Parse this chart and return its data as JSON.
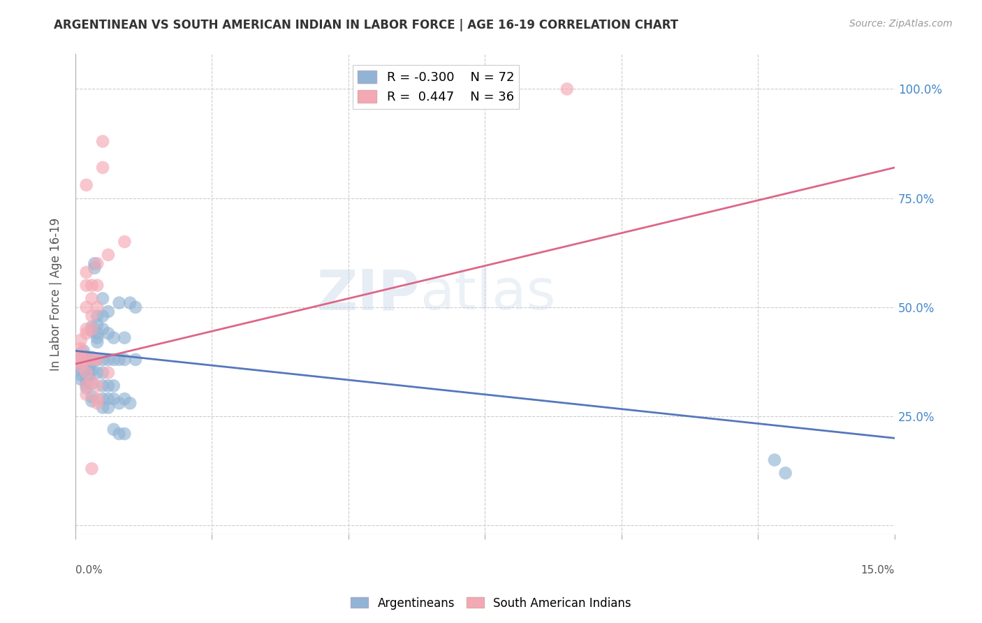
{
  "title": "ARGENTINEAN VS SOUTH AMERICAN INDIAN IN LABOR FORCE | AGE 16-19 CORRELATION CHART",
  "source": "Source: ZipAtlas.com",
  "ylabel": "In Labor Force | Age 16-19",
  "ytick_labels": [
    "",
    "25.0%",
    "50.0%",
    "75.0%",
    "100.0%"
  ],
  "ytick_positions": [
    0.0,
    0.25,
    0.5,
    0.75,
    1.0
  ],
  "xlim": [
    0.0,
    0.15
  ],
  "ylim": [
    -0.02,
    1.08
  ],
  "watermark": "ZIPatlas",
  "legend_blue_r": "-0.300",
  "legend_blue_n": "72",
  "legend_pink_r": "0.447",
  "legend_pink_n": "36",
  "blue_color": "#92B4D4",
  "pink_color": "#F4A8B4",
  "blue_scatter_alpha": 0.65,
  "pink_scatter_alpha": 0.65,
  "blue_line_color": "#5577BB",
  "pink_line_color": "#DD6688",
  "blue_scatter": [
    [
      0.001,
      0.385
    ],
    [
      0.001,
      0.365
    ],
    [
      0.001,
      0.355
    ],
    [
      0.001,
      0.345
    ],
    [
      0.001,
      0.335
    ],
    [
      0.0015,
      0.4
    ],
    [
      0.0015,
      0.39
    ],
    [
      0.0015,
      0.375
    ],
    [
      0.0015,
      0.365
    ],
    [
      0.0015,
      0.355
    ],
    [
      0.002,
      0.385
    ],
    [
      0.002,
      0.37
    ],
    [
      0.002,
      0.355
    ],
    [
      0.002,
      0.345
    ],
    [
      0.002,
      0.335
    ],
    [
      0.002,
      0.325
    ],
    [
      0.002,
      0.315
    ],
    [
      0.0025,
      0.38
    ],
    [
      0.0025,
      0.37
    ],
    [
      0.0025,
      0.36
    ],
    [
      0.0025,
      0.35
    ],
    [
      0.0025,
      0.34
    ],
    [
      0.003,
      0.455
    ],
    [
      0.003,
      0.445
    ],
    [
      0.003,
      0.385
    ],
    [
      0.003,
      0.375
    ],
    [
      0.003,
      0.355
    ],
    [
      0.003,
      0.325
    ],
    [
      0.003,
      0.295
    ],
    [
      0.003,
      0.285
    ],
    [
      0.0035,
      0.6
    ],
    [
      0.0035,
      0.59
    ],
    [
      0.004,
      0.48
    ],
    [
      0.004,
      0.46
    ],
    [
      0.004,
      0.44
    ],
    [
      0.004,
      0.43
    ],
    [
      0.004,
      0.42
    ],
    [
      0.004,
      0.38
    ],
    [
      0.004,
      0.35
    ],
    [
      0.005,
      0.52
    ],
    [
      0.005,
      0.48
    ],
    [
      0.005,
      0.45
    ],
    [
      0.005,
      0.38
    ],
    [
      0.005,
      0.35
    ],
    [
      0.005,
      0.32
    ],
    [
      0.005,
      0.29
    ],
    [
      0.005,
      0.27
    ],
    [
      0.006,
      0.49
    ],
    [
      0.006,
      0.44
    ],
    [
      0.006,
      0.38
    ],
    [
      0.006,
      0.32
    ],
    [
      0.006,
      0.29
    ],
    [
      0.006,
      0.27
    ],
    [
      0.007,
      0.43
    ],
    [
      0.007,
      0.38
    ],
    [
      0.007,
      0.32
    ],
    [
      0.007,
      0.29
    ],
    [
      0.007,
      0.22
    ],
    [
      0.008,
      0.51
    ],
    [
      0.008,
      0.38
    ],
    [
      0.008,
      0.28
    ],
    [
      0.008,
      0.21
    ],
    [
      0.009,
      0.43
    ],
    [
      0.009,
      0.38
    ],
    [
      0.009,
      0.29
    ],
    [
      0.009,
      0.21
    ],
    [
      0.01,
      0.51
    ],
    [
      0.01,
      0.28
    ],
    [
      0.011,
      0.5
    ],
    [
      0.011,
      0.38
    ],
    [
      0.13,
      0.12
    ],
    [
      0.128,
      0.15
    ]
  ],
  "pink_scatter": [
    [
      0.001,
      0.425
    ],
    [
      0.001,
      0.405
    ],
    [
      0.001,
      0.395
    ],
    [
      0.001,
      0.385
    ],
    [
      0.001,
      0.375
    ],
    [
      0.001,
      0.365
    ],
    [
      0.002,
      0.78
    ],
    [
      0.002,
      0.58
    ],
    [
      0.002,
      0.55
    ],
    [
      0.002,
      0.5
    ],
    [
      0.002,
      0.45
    ],
    [
      0.002,
      0.44
    ],
    [
      0.002,
      0.38
    ],
    [
      0.002,
      0.35
    ],
    [
      0.002,
      0.32
    ],
    [
      0.002,
      0.3
    ],
    [
      0.003,
      0.55
    ],
    [
      0.003,
      0.52
    ],
    [
      0.003,
      0.48
    ],
    [
      0.003,
      0.45
    ],
    [
      0.003,
      0.38
    ],
    [
      0.003,
      0.33
    ],
    [
      0.003,
      0.13
    ],
    [
      0.004,
      0.6
    ],
    [
      0.004,
      0.55
    ],
    [
      0.004,
      0.5
    ],
    [
      0.004,
      0.38
    ],
    [
      0.004,
      0.32
    ],
    [
      0.004,
      0.29
    ],
    [
      0.004,
      0.28
    ],
    [
      0.005,
      0.88
    ],
    [
      0.005,
      0.82
    ],
    [
      0.006,
      0.62
    ],
    [
      0.006,
      0.35
    ],
    [
      0.009,
      0.65
    ],
    [
      0.09,
      1.0
    ]
  ],
  "blue_line_x": [
    0.0,
    0.15
  ],
  "blue_line_y": [
    0.4,
    0.2
  ],
  "pink_line_x": [
    0.0,
    0.15
  ],
  "pink_line_y": [
    0.37,
    0.82
  ]
}
